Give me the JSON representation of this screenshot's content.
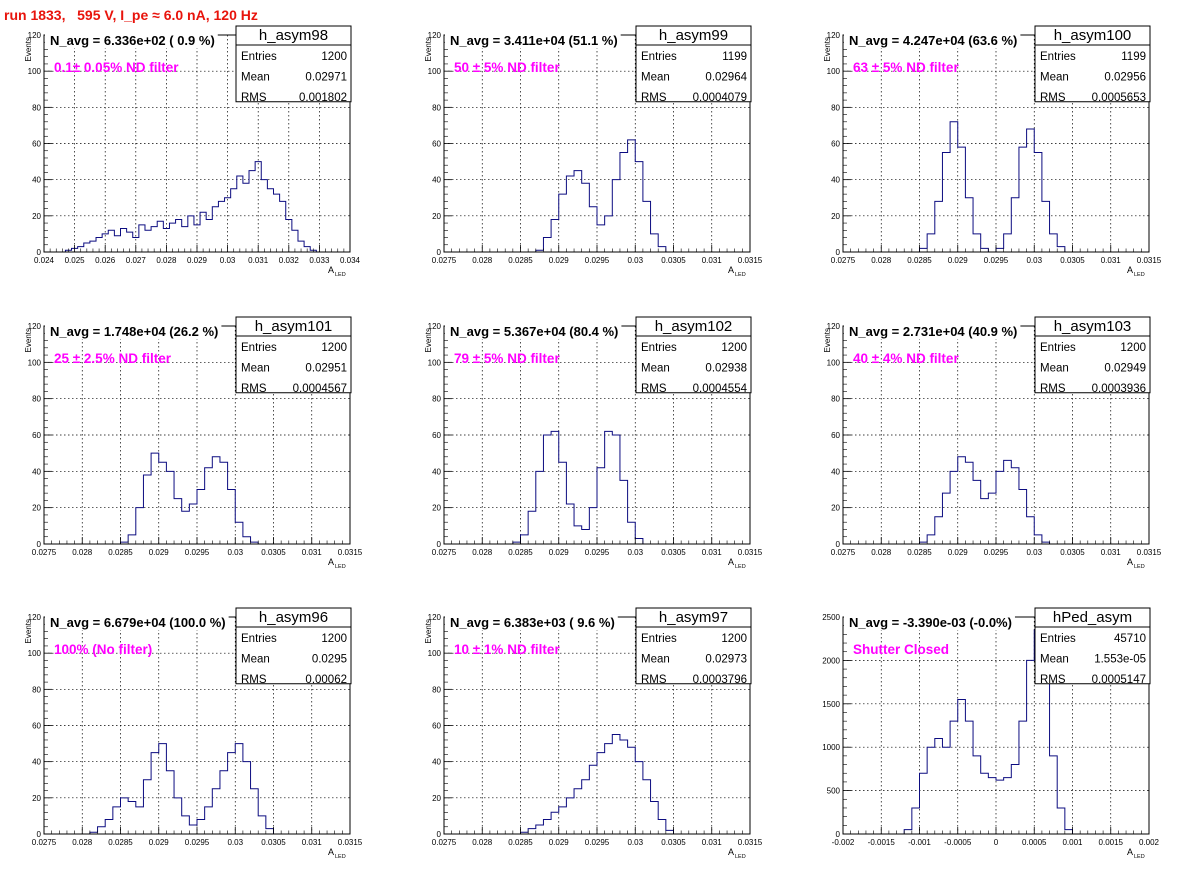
{
  "page": {
    "title": "run 1833,   595 V, I_pe ≈ 6.0 nA, 120 Hz",
    "colors": {
      "title": "#e8140c",
      "histogram": "#0c0c80",
      "annotation": "#ff00ff",
      "grid": "#000000"
    }
  },
  "chart_data": [
    {
      "type": "bar",
      "hist_name": "h_asym98",
      "stats": {
        "entries_label": "Entries",
        "entries": "1200",
        "mean_label": "Mean",
        "mean": "0.02971",
        "rms_label": "RMS",
        "rms": "0.001802"
      },
      "navg": "N_avg = 6.336e+02 ( 0.9 %)",
      "annotation": "0.1± 0.05% ND filter",
      "ylabel": "Events",
      "xlabel": "A",
      "xlabel_sub": "LED",
      "xlim": [
        0.024,
        0.034
      ],
      "ylim": [
        0,
        120
      ],
      "xticks": [
        "0.024",
        "0.025",
        "0.026",
        "0.027",
        "0.028",
        "0.029",
        "0.03",
        "0.031",
        "0.032",
        "0.033",
        "0.034"
      ],
      "yticks": [
        "0",
        "20",
        "40",
        "60",
        "80",
        "100",
        "120"
      ],
      "grid": true,
      "x": [
        0.0244,
        0.0246,
        0.0248,
        0.025,
        0.0252,
        0.0254,
        0.0256,
        0.0258,
        0.026,
        0.0262,
        0.0264,
        0.0266,
        0.0268,
        0.027,
        0.0272,
        0.0274,
        0.0276,
        0.0278,
        0.028,
        0.0282,
        0.0284,
        0.0286,
        0.0288,
        0.029,
        0.0292,
        0.0294,
        0.0296,
        0.0298,
        0.03,
        0.0302,
        0.0304,
        0.0306,
        0.0308,
        0.031,
        0.0312,
        0.0314,
        0.0316,
        0.0318,
        0.032,
        0.0322,
        0.0324,
        0.0326,
        0.0328,
        0.033
      ],
      "values": [
        0,
        0,
        1,
        2,
        3,
        5,
        6,
        8,
        10,
        12,
        9,
        13,
        11,
        8,
        15,
        12,
        14,
        17,
        13,
        16,
        18,
        14,
        20,
        15,
        22,
        18,
        25,
        28,
        30,
        35,
        42,
        38,
        45,
        50,
        40,
        35,
        32,
        28,
        18,
        12,
        6,
        3,
        1,
        0
      ]
    },
    {
      "type": "bar",
      "hist_name": "h_asym99",
      "stats": {
        "entries_label": "Entries",
        "entries": "1199",
        "mean_label": "Mean",
        "mean": "0.02964",
        "rms_label": "RMS",
        "rms": "0.0004079"
      },
      "navg": "N_avg = 3.411e+04 (51.1 %)",
      "annotation": "50 ± 5% ND filter",
      "ylabel": "Events",
      "xlabel": "A",
      "xlabel_sub": "LED",
      "xlim": [
        0.0275,
        0.0315
      ],
      "ylim": [
        0,
        120
      ],
      "xticks": [
        "0.0275",
        "0.028",
        "0.0285",
        "0.029",
        "0.0295",
        "0.03",
        "0.0305",
        "0.031",
        "0.0315"
      ],
      "yticks": [
        "0",
        "20",
        "40",
        "60",
        "80",
        "100",
        "120"
      ],
      "grid": true,
      "x": [
        0.02875,
        0.02885,
        0.02895,
        0.02905,
        0.02915,
        0.02925,
        0.02935,
        0.02945,
        0.02955,
        0.02965,
        0.02975,
        0.02985,
        0.02995,
        0.03005,
        0.03015,
        0.03025,
        0.03035,
        0.03045
      ],
      "values": [
        1,
        8,
        18,
        32,
        42,
        45,
        38,
        25,
        15,
        20,
        40,
        55,
        62,
        50,
        28,
        10,
        3,
        0
      ]
    },
    {
      "type": "bar",
      "hist_name": "h_asym100",
      "stats": {
        "entries_label": "Entries",
        "entries": "1199",
        "mean_label": "Mean",
        "mean": "0.02956",
        "rms_label": "RMS",
        "rms": "0.0005653"
      },
      "navg": "N_avg = 4.247e+04 (63.6 %)",
      "annotation": "63 ± 5% ND filter",
      "ylabel": "Events",
      "xlabel": "A",
      "xlabel_sub": "LED",
      "xlim": [
        0.0275,
        0.0315
      ],
      "ylim": [
        0,
        120
      ],
      "xticks": [
        "0.0275",
        "0.028",
        "0.0285",
        "0.029",
        "0.0295",
        "0.03",
        "0.0305",
        "0.031",
        "0.0315"
      ],
      "yticks": [
        "0",
        "20",
        "40",
        "60",
        "80",
        "100",
        "120"
      ],
      "grid": true,
      "x": [
        0.02855,
        0.02865,
        0.02875,
        0.02885,
        0.02895,
        0.02905,
        0.02915,
        0.02925,
        0.02935,
        0.02945,
        0.02955,
        0.02965,
        0.02975,
        0.02985,
        0.02995,
        0.03005,
        0.03015,
        0.03025,
        0.03035,
        0.03045
      ],
      "values": [
        2,
        10,
        28,
        55,
        72,
        58,
        30,
        10,
        2,
        0,
        2,
        10,
        30,
        58,
        68,
        55,
        28,
        10,
        3,
        0
      ]
    },
    {
      "type": "bar",
      "hist_name": "h_asym101",
      "stats": {
        "entries_label": "Entries",
        "entries": "1200",
        "mean_label": "Mean",
        "mean": "0.02951",
        "rms_label": "RMS",
        "rms": "0.0004567"
      },
      "navg": "N_avg = 1.748e+04 (26.2 %)",
      "annotation": "25 ± 2.5% ND filter",
      "ylabel": "Events",
      "xlabel": "A",
      "xlabel_sub": "LED",
      "xlim": [
        0.0275,
        0.0315
      ],
      "ylim": [
        0,
        120
      ],
      "xticks": [
        "0.0275",
        "0.028",
        "0.0285",
        "0.029",
        "0.0295",
        "0.03",
        "0.0305",
        "0.031",
        "0.0315"
      ],
      "yticks": [
        "0",
        "20",
        "40",
        "60",
        "80",
        "100",
        "120"
      ],
      "grid": true,
      "x": [
        0.02855,
        0.02865,
        0.02875,
        0.02885,
        0.02895,
        0.02905,
        0.02915,
        0.02925,
        0.02935,
        0.02945,
        0.02955,
        0.02965,
        0.02975,
        0.02985,
        0.02995,
        0.03005,
        0.03015,
        0.03025,
        0.03035,
        0.03045
      ],
      "values": [
        1,
        5,
        20,
        38,
        50,
        45,
        40,
        25,
        18,
        22,
        30,
        42,
        48,
        45,
        30,
        12,
        4,
        1,
        0,
        0
      ]
    },
    {
      "type": "bar",
      "hist_name": "h_asym102",
      "stats": {
        "entries_label": "Entries",
        "entries": "1200",
        "mean_label": "Mean",
        "mean": "0.02938",
        "rms_label": "RMS",
        "rms": "0.0004554"
      },
      "navg": "N_avg = 5.367e+04 (80.4 %)",
      "annotation": "79 ± 5% ND filter",
      "ylabel": "Events",
      "xlabel": "A",
      "xlabel_sub": "LED",
      "xlim": [
        0.0275,
        0.0315
      ],
      "ylim": [
        0,
        120
      ],
      "xticks": [
        "0.0275",
        "0.028",
        "0.0285",
        "0.029",
        "0.0295",
        "0.03",
        "0.0305",
        "0.031",
        "0.0315"
      ],
      "yticks": [
        "0",
        "20",
        "40",
        "60",
        "80",
        "100",
        "120"
      ],
      "grid": true,
      "x": [
        0.02845,
        0.02855,
        0.02865,
        0.02875,
        0.02885,
        0.02895,
        0.02905,
        0.02915,
        0.02925,
        0.02935,
        0.02945,
        0.02955,
        0.02965,
        0.02975,
        0.02985,
        0.02995,
        0.03005,
        0.03015
      ],
      "values": [
        1,
        5,
        18,
        40,
        60,
        62,
        45,
        22,
        10,
        8,
        20,
        42,
        62,
        60,
        35,
        12,
        3,
        0
      ]
    },
    {
      "type": "bar",
      "hist_name": "h_asym103",
      "stats": {
        "entries_label": "Entries",
        "entries": "1200",
        "mean_label": "Mean",
        "mean": "0.02949",
        "rms_label": "RMS",
        "rms": "0.0003936"
      },
      "navg": "N_avg = 2.731e+04 (40.9 %)",
      "annotation": "40 ± 4% ND filter",
      "ylabel": "Events",
      "xlabel": "A",
      "xlabel_sub": "LED",
      "xlim": [
        0.0275,
        0.0315
      ],
      "ylim": [
        0,
        120
      ],
      "xticks": [
        "0.0275",
        "0.028",
        "0.0285",
        "0.029",
        "0.0295",
        "0.03",
        "0.0305",
        "0.031",
        "0.0315"
      ],
      "yticks": [
        "0",
        "20",
        "40",
        "60",
        "80",
        "100",
        "120"
      ],
      "grid": true,
      "x": [
        0.02855,
        0.02865,
        0.02875,
        0.02885,
        0.02895,
        0.02905,
        0.02915,
        0.02925,
        0.02935,
        0.02945,
        0.02955,
        0.02965,
        0.02975,
        0.02985,
        0.02995,
        0.03005,
        0.03015,
        0.03025
      ],
      "values": [
        1,
        5,
        15,
        28,
        40,
        48,
        45,
        35,
        25,
        28,
        40,
        46,
        42,
        30,
        15,
        5,
        1,
        0
      ]
    },
    {
      "type": "bar",
      "hist_name": "h_asym96",
      "stats": {
        "entries_label": "Entries",
        "entries": "1200",
        "mean_label": "Mean",
        "mean": "0.0295",
        "rms_label": "RMS",
        "rms": "0.00062"
      },
      "navg": "N_avg = 6.679e+04 (100.0 %)",
      "annotation": "100% (No filter)",
      "ylabel": "Events",
      "xlabel": "A",
      "xlabel_sub": "LED",
      "xlim": [
        0.0275,
        0.0315
      ],
      "ylim": [
        0,
        120
      ],
      "xticks": [
        "0.0275",
        "0.028",
        "0.0285",
        "0.029",
        "0.0295",
        "0.03",
        "0.0305",
        "0.031",
        "0.0315"
      ],
      "yticks": [
        "0",
        "20",
        "40",
        "60",
        "80",
        "100",
        "120"
      ],
      "grid": true,
      "x": [
        0.02815,
        0.02825,
        0.02835,
        0.02845,
        0.02855,
        0.02865,
        0.02875,
        0.02885,
        0.02895,
        0.02905,
        0.02915,
        0.02925,
        0.02935,
        0.02945,
        0.02955,
        0.02965,
        0.02975,
        0.02985,
        0.02995,
        0.03005,
        0.03015,
        0.03025,
        0.03035,
        0.03045,
        0.03055
      ],
      "values": [
        1,
        4,
        8,
        15,
        20,
        18,
        15,
        30,
        45,
        50,
        35,
        20,
        10,
        5,
        8,
        15,
        25,
        35,
        45,
        50,
        40,
        25,
        10,
        3,
        0
      ]
    },
    {
      "type": "bar",
      "hist_name": "h_asym97",
      "stats": {
        "entries_label": "Entries",
        "entries": "1200",
        "mean_label": "Mean",
        "mean": "0.02973",
        "rms_label": "RMS",
        "rms": "0.0003796"
      },
      "navg": "N_avg = 6.383e+03 ( 9.6 %)",
      "annotation": "10 ± 1% ND filter",
      "ylabel": "Events",
      "xlabel": "A",
      "xlabel_sub": "LED",
      "xlim": [
        0.0275,
        0.0315
      ],
      "ylim": [
        0,
        120
      ],
      "xticks": [
        "0.0275",
        "0.028",
        "0.0285",
        "0.029",
        "0.0295",
        "0.03",
        "0.0305",
        "0.031",
        "0.0315"
      ],
      "yticks": [
        "0",
        "20",
        "40",
        "60",
        "80",
        "100",
        "120"
      ],
      "grid": true,
      "x": [
        0.02855,
        0.02865,
        0.02875,
        0.02885,
        0.02895,
        0.02905,
        0.02915,
        0.02925,
        0.02935,
        0.02945,
        0.02955,
        0.02965,
        0.02975,
        0.02985,
        0.02995,
        0.03005,
        0.03015,
        0.03025,
        0.03035,
        0.03045,
        0.03055
      ],
      "values": [
        1,
        3,
        5,
        8,
        12,
        15,
        20,
        25,
        30,
        38,
        45,
        50,
        55,
        52,
        48,
        40,
        30,
        18,
        8,
        2,
        0
      ]
    },
    {
      "type": "bar",
      "hist_name": "hPed_asym",
      "stats": {
        "entries_label": "Entries",
        "entries": "45710",
        "mean_label": "Mean",
        "mean": "1.553e-05",
        "rms_label": "RMS",
        "rms": "0.0005147"
      },
      "navg": "N_avg = -3.390e-03 (-0.0%)",
      "annotation": "Shutter Closed",
      "ylabel": "",
      "xlabel": "A",
      "xlabel_sub": "LED",
      "xlim": [
        -0.002,
        0.002
      ],
      "ylim": [
        0,
        2500
      ],
      "xticks": [
        "-0.002",
        "-0.0015",
        "-0.001",
        "-0.0005",
        "0",
        "0.0005",
        "0.001",
        "0.0015",
        "0.002"
      ],
      "yticks": [
        "0",
        "500",
        "1000",
        "1500",
        "2000",
        "2500"
      ],
      "grid": true,
      "x": [
        -0.00115,
        -0.00105,
        -0.00095,
        -0.00085,
        -0.00075,
        -0.00065,
        -0.00055,
        -0.00045,
        -0.00035,
        -0.00025,
        -0.00015,
        -5e-05,
        5e-05,
        0.00015,
        0.00025,
        0.00035,
        0.00045,
        0.00055,
        0.00065,
        0.00075,
        0.00085,
        0.00095,
        0.00105
      ],
      "values": [
        50,
        300,
        700,
        1000,
        1100,
        1000,
        1300,
        1550,
        1300,
        900,
        700,
        650,
        620,
        650,
        800,
        1300,
        2000,
        2350,
        1800,
        900,
        300,
        50,
        0
      ]
    }
  ]
}
